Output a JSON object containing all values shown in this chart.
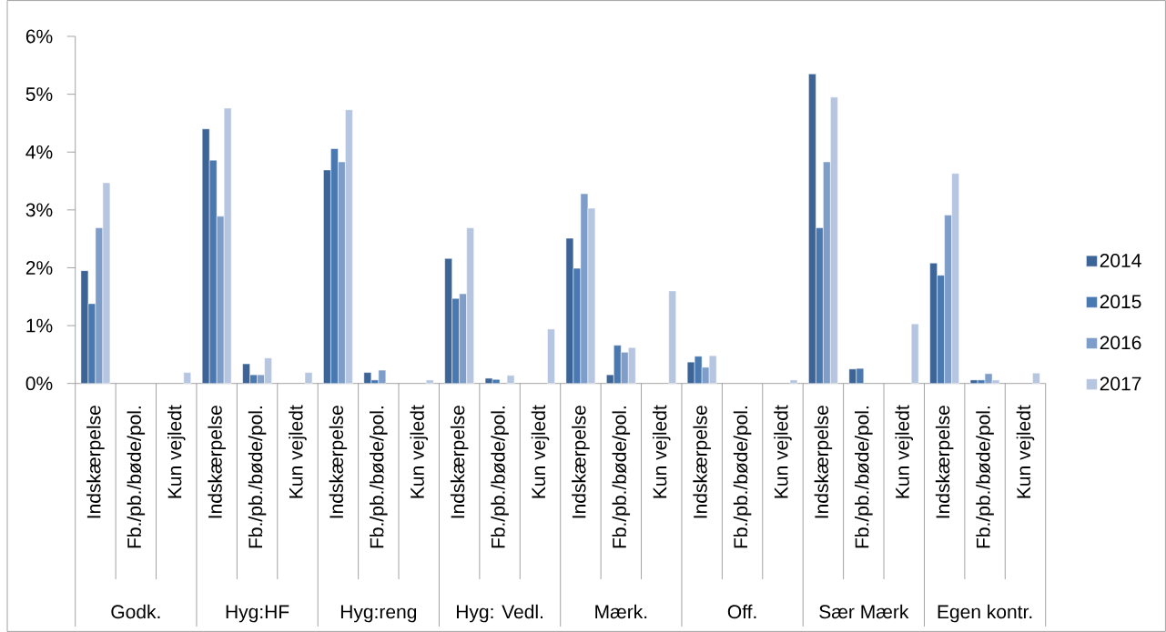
{
  "chart_data": {
    "type": "bar",
    "categories": [
      "Indskærpelse",
      "Fb./pb./bøde/pol.",
      "Kun vejledt",
      "Indskærpelse",
      "Fb./pb./bøde/pol.",
      "Kun vejledt",
      "Indskærpelse",
      "Fb./pb./bøde/pol.",
      "Kun vejledt",
      "Indskærpelse",
      "Fb./pb./bøde/pol.",
      "Kun vejledt",
      "Indskærpelse",
      "Fb./pb./bøde/pol.",
      "Kun vejledt",
      "Indskærpelse",
      "Fb./pb./bøde/pol.",
      "Kun vejledt",
      "Indskærpelse",
      "Fb./pb./bøde/pol.",
      "Kun vejledt",
      "Indskærpelse",
      "Fb./pb./bøde/pol.",
      "Kun vejledt"
    ],
    "series": [
      {
        "name": "2014",
        "color": "#3c6496",
        "values": [
          1.95,
          null,
          null,
          4.4,
          0.34,
          null,
          3.69,
          0.19,
          null,
          2.16,
          0.09,
          null,
          2.51,
          0.15,
          null,
          0.37,
          null,
          null,
          5.35,
          0.25,
          null,
          2.08,
          0.06,
          null
        ]
      },
      {
        "name": "2015",
        "color": "#4a78b0",
        "values": [
          1.38,
          null,
          null,
          3.86,
          0.15,
          null,
          4.06,
          0.06,
          null,
          1.47,
          0.07,
          null,
          1.99,
          0.66,
          null,
          0.47,
          null,
          null,
          2.69,
          0.26,
          null,
          1.87,
          0.06,
          null
        ]
      },
      {
        "name": "2016",
        "color": "#7f9dc9",
        "values": [
          2.69,
          null,
          null,
          2.89,
          0.15,
          null,
          3.83,
          0.23,
          null,
          1.55,
          null,
          null,
          3.28,
          0.54,
          null,
          0.28,
          null,
          null,
          3.83,
          null,
          null,
          2.91,
          0.17,
          null
        ]
      },
      {
        "name": "2017",
        "color": "#b7c6e0",
        "values": [
          3.47,
          null,
          0.19,
          4.76,
          0.44,
          0.19,
          4.73,
          null,
          0.06,
          2.69,
          0.14,
          0.94,
          3.03,
          0.62,
          1.6,
          0.48,
          null,
          0.06,
          4.95,
          null,
          1.03,
          3.63,
          0.06,
          0.18
        ]
      }
    ],
    "ylim": [
      0,
      6
    ],
    "yticks": [
      {
        "value": 0,
        "label": "0%"
      },
      {
        "value": 1,
        "label": "1%"
      },
      {
        "value": 2,
        "label": "2%"
      },
      {
        "value": 3,
        "label": "3%"
      },
      {
        "value": 4,
        "label": "4%"
      },
      {
        "value": 5,
        "label": "5%"
      },
      {
        "value": 6,
        "label": "6%"
      }
    ],
    "grid": false,
    "legend": "right",
    "annotations": [
      "Godk.",
      "Hyg:HF",
      "Hyg:reng",
      "Hyg: Vedl.",
      "Mærk.",
      "Off.",
      "Sær Mærk",
      "Egen kontr."
    ]
  }
}
